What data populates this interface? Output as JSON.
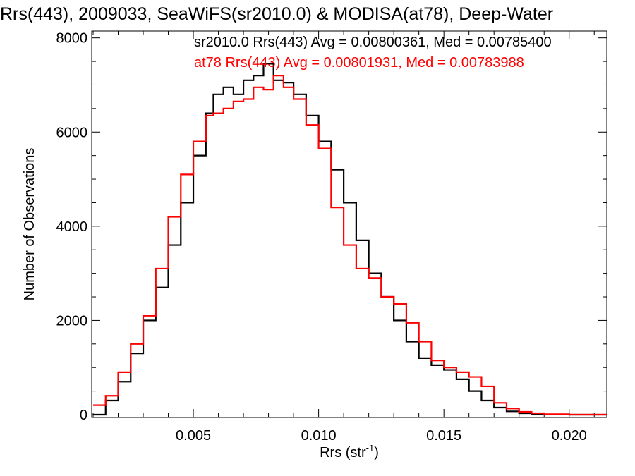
{
  "chart_data": {
    "type": "line",
    "title": "Rrs(443), 2009033, SeaWiFS(sr2010.0) & MODISA(at78), Deep-Water",
    "xlabel": "Rrs (str",
    "xlabel_sup": "-1",
    "xlabel_close": ")",
    "ylabel": "Number of Observations",
    "xlim": [
      0.001,
      0.0215
    ],
    "ylim": [
      0,
      8100
    ],
    "x_ticks": [
      0.005,
      0.01,
      0.015,
      0.02
    ],
    "x_tick_labels": [
      "0.005",
      "0.010",
      "0.015",
      "0.020"
    ],
    "y_ticks": [
      0,
      2000,
      4000,
      6000,
      8000
    ],
    "y_tick_labels": [
      "0",
      "2000",
      "4000",
      "6000",
      "8000"
    ],
    "annotations": [
      "sr2010.0 Rrs(443) Avg = 0.00800361, Med = 0.00785400",
      "at78 Rrs(443) Avg = 0.00801931, Med = 0.00783988"
    ],
    "series": [
      {
        "color": "#000000",
        "x": [
          0.001,
          0.0015,
          0.002,
          0.0025,
          0.003,
          0.0035,
          0.004,
          0.0045,
          0.005,
          0.0055,
          0.0058,
          0.0062,
          0.0066,
          0.007,
          0.0074,
          0.0078,
          0.0082,
          0.0086,
          0.009,
          0.0095,
          0.01,
          0.0105,
          0.011,
          0.0115,
          0.012,
          0.0125,
          0.013,
          0.0135,
          0.014,
          0.0145,
          0.015,
          0.0155,
          0.016,
          0.0165,
          0.017,
          0.0175,
          0.018,
          0.0185,
          0.019,
          0.02,
          0.0215
        ],
        "y": [
          0,
          300,
          700,
          1300,
          2000,
          2700,
          3600,
          4500,
          5500,
          6400,
          6800,
          6950,
          6800,
          7100,
          7200,
          7450,
          7100,
          7050,
          6800,
          6350,
          5800,
          5200,
          4500,
          3700,
          3000,
          2500,
          2000,
          1550,
          1200,
          1050,
          950,
          750,
          500,
          300,
          150,
          70,
          30,
          10,
          5,
          0,
          0
        ]
      },
      {
        "color": "#ff0000",
        "x": [
          0.001,
          0.0015,
          0.002,
          0.0025,
          0.003,
          0.0035,
          0.004,
          0.0045,
          0.005,
          0.0055,
          0.0058,
          0.0062,
          0.0066,
          0.007,
          0.0074,
          0.0078,
          0.0082,
          0.0086,
          0.009,
          0.0095,
          0.01,
          0.0105,
          0.011,
          0.0115,
          0.012,
          0.0125,
          0.013,
          0.0135,
          0.014,
          0.0145,
          0.015,
          0.0155,
          0.016,
          0.0165,
          0.017,
          0.0175,
          0.018,
          0.0185,
          0.019,
          0.02,
          0.0215
        ],
        "y": [
          200,
          400,
          900,
          1500,
          2100,
          3100,
          4200,
          5100,
          5800,
          6350,
          6400,
          6500,
          6650,
          6700,
          6950,
          6900,
          7200,
          6950,
          6700,
          6150,
          5650,
          4400,
          3600,
          3100,
          2900,
          2500,
          2350,
          1950,
          1550,
          1150,
          1000,
          900,
          800,
          600,
          250,
          130,
          60,
          30,
          10,
          0,
          0
        ]
      }
    ]
  }
}
